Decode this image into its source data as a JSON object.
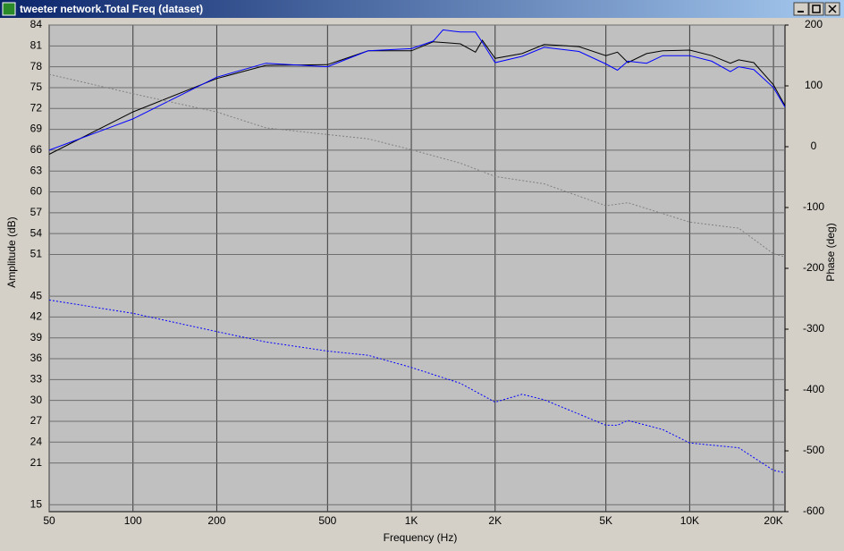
{
  "window": {
    "title": "tweeter network.Total Freq (dataset)"
  },
  "chart_data": {
    "type": "line",
    "xlabel": "Frequency (Hz)",
    "ylabel": "Amplitude (dB)",
    "y2label": "Phase (deg)",
    "xscale": "log",
    "grid": true,
    "background": "#c0c0c0",
    "xlim": [
      50,
      22000
    ],
    "xticks": [
      50,
      100,
      200,
      500,
      {
        "value": 1000,
        "label": "1K"
      },
      {
        "value": 2000,
        "label": "2K"
      },
      {
        "value": 5000,
        "label": "5K"
      },
      {
        "value": 10000,
        "label": "10K"
      },
      {
        "value": 20000,
        "label": "20K"
      }
    ],
    "ylim": [
      14,
      84
    ],
    "yticks": [
      84,
      81,
      78,
      75,
      72,
      69,
      66,
      63,
      60,
      57,
      54,
      51,
      45,
      42,
      39,
      36,
      33,
      30,
      27,
      24,
      21,
      15
    ],
    "y2lim": [
      -600,
      200
    ],
    "y2ticks": [
      200,
      100,
      0,
      -100,
      -200,
      -300,
      -400,
      -500,
      -600
    ],
    "series": [
      {
        "color": "#000000",
        "line_style": "solid",
        "x": [
          50,
          100,
          200,
          300,
          500,
          700,
          1000,
          1200,
          1500,
          1700,
          1800,
          2000,
          2500,
          3000,
          4000,
          5000,
          5500,
          6000,
          7000,
          8000,
          10000,
          12000,
          14000,
          15000,
          17000,
          20000,
          22000
        ],
        "values": [
          65.4,
          71.5,
          76.3,
          78.2,
          78.3,
          80.3,
          80.3,
          81.6,
          81.3,
          80.1,
          81.8,
          79.2,
          79.9,
          81.2,
          80.9,
          79.6,
          80.1,
          78.6,
          79.9,
          80.3,
          80.4,
          79.6,
          78.5,
          79.0,
          78.6,
          75.4,
          72.4
        ]
      },
      {
        "color": "#0000ff",
        "line_style": "solid",
        "x": [
          50,
          100,
          200,
          300,
          500,
          700,
          1000,
          1200,
          1300,
          1500,
          1700,
          1800,
          2000,
          2500,
          3000,
          4000,
          5000,
          5500,
          6000,
          7000,
          8000,
          10000,
          12000,
          14000,
          15000,
          17000,
          20000,
          22000
        ],
        "values": [
          66,
          70.5,
          76.5,
          78.5,
          78.0,
          80.3,
          80.6,
          81.7,
          83.3,
          83.0,
          83.0,
          81.5,
          78.6,
          79.5,
          80.8,
          80.2,
          78.4,
          77.5,
          78.8,
          78.5,
          79.6,
          79.6,
          78.8,
          77.3,
          78.0,
          77.6,
          75.0,
          72.2
        ]
      },
      {
        "color": "#808080",
        "line_style": "dotted",
        "axis": "y2",
        "x": [
          50,
          100,
          200,
          300,
          500,
          700,
          1000,
          1500,
          2000,
          3000,
          5000,
          6000,
          10000,
          15000,
          20000,
          22000
        ],
        "values": [
          119,
          87,
          57,
          31,
          20,
          13,
          -5,
          -27,
          -49,
          -61,
          -97,
          -92,
          -124,
          -134,
          -176,
          -181
        ]
      },
      {
        "color": "#0000ff",
        "line_style": "dotted",
        "axis": "y2",
        "x": [
          50,
          100,
          200,
          300,
          500,
          700,
          1000,
          1500,
          2000,
          2500,
          3000,
          5000,
          5500,
          6000,
          8000,
          10000,
          15000,
          20000,
          22000
        ],
        "values": [
          -252,
          -274,
          -304,
          -321,
          -336,
          -343,
          -363,
          -389,
          -420,
          -407,
          -416,
          -458,
          -458,
          -450,
          -465,
          -487,
          -495,
          -532,
          -536
        ]
      }
    ]
  }
}
